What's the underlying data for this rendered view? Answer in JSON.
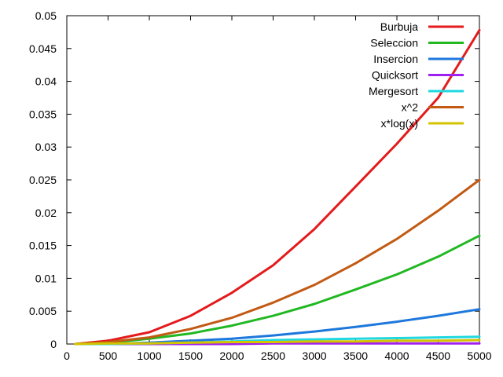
{
  "chart_data": {
    "type": "line",
    "title": "",
    "xlabel": "",
    "ylabel": "",
    "xlim": [
      0,
      5000
    ],
    "ylim": [
      0,
      0.05
    ],
    "xticks": [
      0,
      500,
      1000,
      1500,
      2000,
      2500,
      3000,
      3500,
      4000,
      4500,
      5000
    ],
    "yticks": [
      0,
      0.005,
      0.01,
      0.015,
      0.02,
      0.025,
      0.03,
      0.035,
      0.04,
      0.045,
      0.05
    ],
    "xtick_labels": [
      "0",
      "500",
      "1000",
      "1500",
      "2000",
      "2500",
      "3000",
      "3500",
      "4000",
      "4500",
      "5000"
    ],
    "ytick_labels": [
      "0",
      "0.005",
      "0.01",
      "0.015",
      "0.02",
      "0.025",
      "0.03",
      "0.035",
      "0.04",
      "0.045",
      "0.05"
    ],
    "grid": false,
    "legend_position": "top-right",
    "x": [
      100,
      500,
      1000,
      1500,
      2000,
      2500,
      3000,
      3500,
      4000,
      4500,
      5000
    ],
    "series": [
      {
        "name": "Burbuja",
        "color": "#e41a1c",
        "values": [
          0.0,
          0.0005,
          0.0018,
          0.0043,
          0.0078,
          0.012,
          0.0175,
          0.024,
          0.0305,
          0.0375,
          0.0478
        ]
      },
      {
        "name": "Seleccion",
        "color": "#22b822",
        "values": [
          0.0,
          0.0002,
          0.0008,
          0.0016,
          0.0028,
          0.0043,
          0.0061,
          0.0083,
          0.0106,
          0.0133,
          0.0165
        ]
      },
      {
        "name": "Insercion",
        "color": "#1e78dc",
        "values": [
          0.0,
          0.0,
          0.0002,
          0.0005,
          0.0008,
          0.0013,
          0.0019,
          0.0026,
          0.0034,
          0.0043,
          0.0053
        ]
      },
      {
        "name": "Quicksort",
        "color": "#a020f0",
        "values": [
          0.0,
          0.0,
          0.0,
          0.0,
          0.0,
          0.0001,
          0.0001,
          0.0001,
          0.0001,
          0.0001,
          0.0001
        ]
      },
      {
        "name": "Mergesort",
        "color": "#20d8e0",
        "values": [
          0.0,
          0.0,
          0.0001,
          0.0002,
          0.0004,
          0.0006,
          0.0007,
          0.0008,
          0.0009,
          0.001,
          0.0011
        ]
      },
      {
        "name": "x^2",
        "color": "#c25a14",
        "values": [
          0.0,
          0.0003,
          0.001,
          0.0023,
          0.004,
          0.0063,
          0.009,
          0.0123,
          0.016,
          0.0203,
          0.025
        ]
      },
      {
        "name": "x*log(x)",
        "color": "#d4c400",
        "values": [
          0.0,
          0.0001,
          0.0001,
          0.0002,
          0.0003,
          0.0003,
          0.0004,
          0.0004,
          0.0005,
          0.0005,
          0.0006
        ]
      }
    ]
  }
}
